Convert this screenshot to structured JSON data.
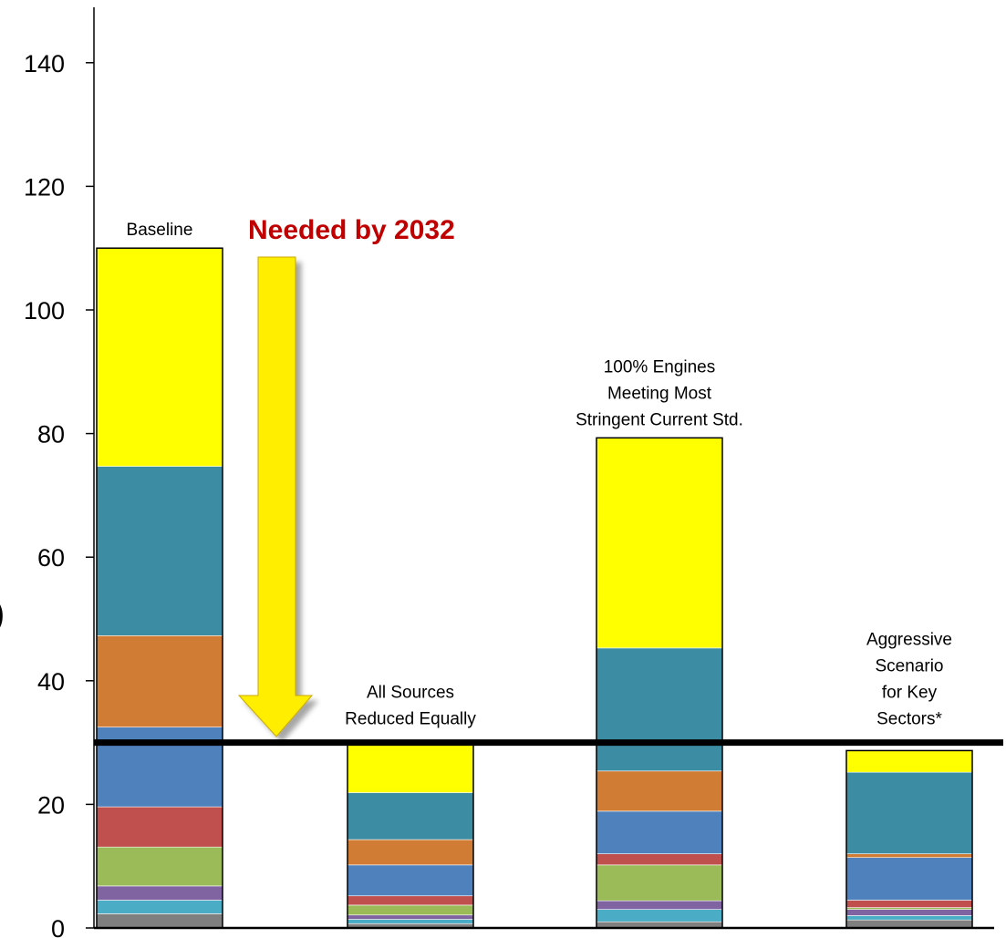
{
  "chart_data": {
    "type": "bar",
    "stacked": true,
    "categories": [
      "Baseline",
      "All Sources Reduced Equally",
      "100% Engines Meeting Most Stringent Current Std.",
      "Aggressive Scenario for Key Sectors*"
    ],
    "category_label_lines": [
      [
        "Baseline"
      ],
      [
        "All Sources",
        "Reduced Equally"
      ],
      [
        "100% Engines",
        "Meeting Most",
        "Stringent Current Std."
      ],
      [
        "Aggressive",
        "Scenario",
        "for Key",
        "Sectors*"
      ]
    ],
    "segment_colors": [
      "#7f7f7f",
      "#4bacc6",
      "#8064a2",
      "#9bbb59",
      "#c0504d",
      "#4f81bd",
      "#d07c35",
      "#3c8ca3",
      "#ffff00"
    ],
    "segments": [
      [
        2.3,
        2.2,
        2.3,
        6.3,
        6.5,
        12.9,
        14.8,
        27.4,
        35.3
      ],
      [
        0.7,
        0.7,
        0.7,
        1.6,
        1.5,
        5.0,
        4.1,
        7.6,
        7.8
      ],
      [
        1.0,
        2.0,
        1.4,
        5.8,
        1.8,
        6.9,
        6.5,
        19.9,
        34.0
      ],
      [
        1.3,
        0.7,
        1.0,
        0.3,
        1.2,
        6.9,
        0.6,
        13.2,
        3.5
      ]
    ],
    "reference_line": 30,
    "annotation": "Needed by 2032",
    "y_ticks": [
      0,
      20,
      40,
      60,
      80,
      100,
      120,
      140
    ],
    "ylim": [
      0,
      150
    ],
    "stray_text": ")"
  }
}
